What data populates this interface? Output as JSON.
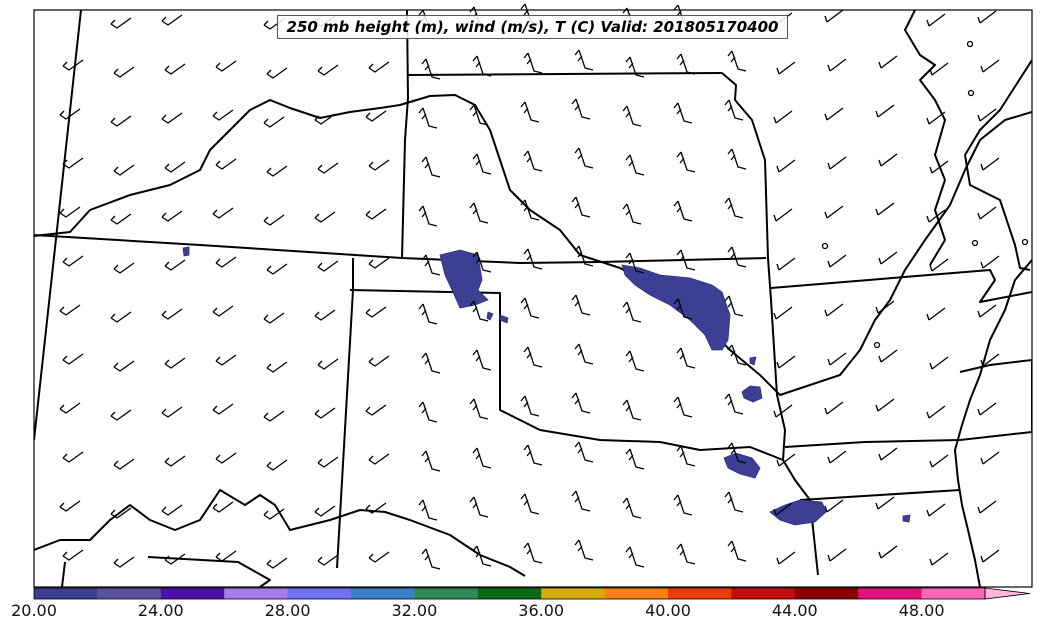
{
  "title": "250 mb height (m), wind (m/s), T (C) Valid: 201805170400",
  "colorbar": {
    "ticks": [
      "20.00",
      "24.00",
      "28.00",
      "32.00",
      "36.00",
      "40.00",
      "44.00",
      "48.00"
    ],
    "colors": [
      "#3c3f8f",
      "#5b529a",
      "#4d0fa8",
      "#a77ce8",
      "#6f72f7",
      "#3b7fc7",
      "#2e8b57",
      "#0c6a17",
      "#d4ad0d",
      "#ff7f0e",
      "#eb3b0c",
      "#c40d0d",
      "#8b0000",
      "#e0137c",
      "#ff66b8",
      "#ffb5dd"
    ]
  },
  "colors": {
    "shade": "#3c3f94",
    "border": "#000000"
  }
}
